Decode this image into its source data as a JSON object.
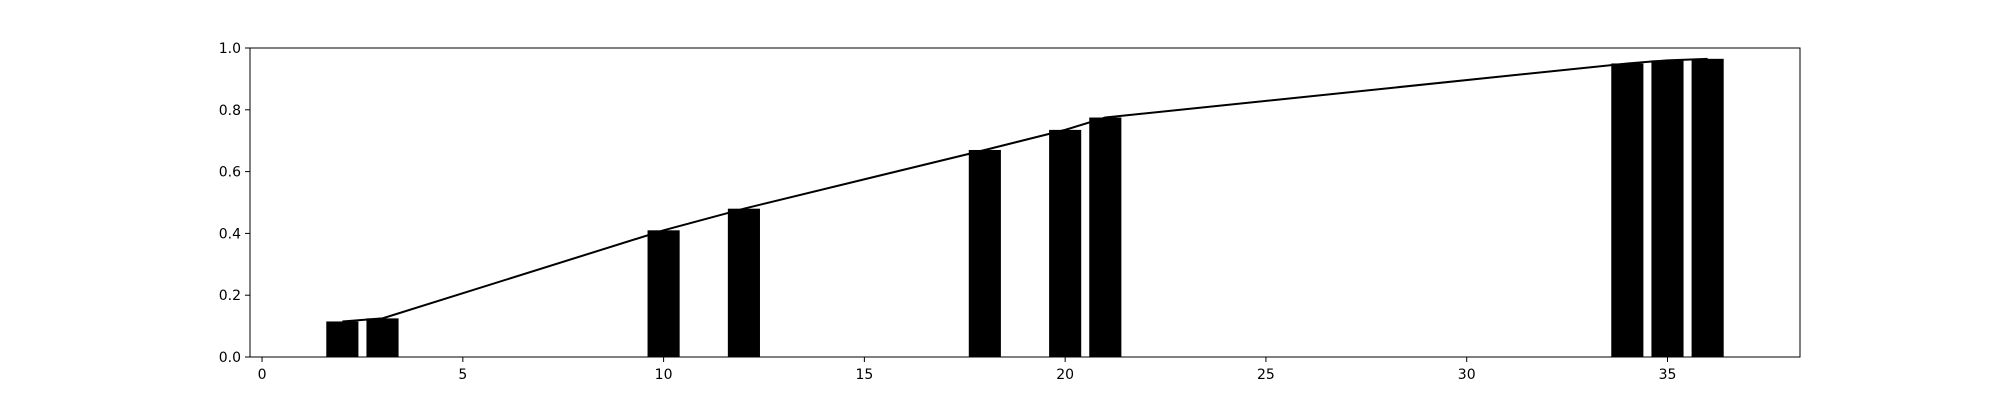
{
  "chart_data": {
    "type": "bar",
    "title": "",
    "xlabel": "",
    "ylabel": "",
    "xlim": [
      -0.3,
      38.3
    ],
    "ylim": [
      0,
      1.0
    ],
    "grid": false,
    "x_ticks": [
      0,
      5,
      10,
      15,
      20,
      25,
      30,
      35
    ],
    "x_tick_labels": [
      "0",
      "5",
      "10",
      "15",
      "20",
      "25",
      "30",
      "35"
    ],
    "y_ticks": [
      0,
      0.2,
      0.4,
      0.6,
      0.8,
      1.0
    ],
    "y_tick_labels": [
      "0.0",
      "0.2",
      "0.4",
      "0.6",
      "0.8",
      "1.0"
    ],
    "bar_width": 0.8,
    "bar_color": "#000000",
    "line_color": "#000000",
    "bars": [
      {
        "x": 2,
        "value": 0.115
      },
      {
        "x": 3,
        "value": 0.125
      },
      {
        "x": 10,
        "value": 0.41
      },
      {
        "x": 12,
        "value": 0.48
      },
      {
        "x": 18,
        "value": 0.67
      },
      {
        "x": 20,
        "value": 0.735
      },
      {
        "x": 21,
        "value": 0.775
      },
      {
        "x": 34,
        "value": 0.95
      },
      {
        "x": 35,
        "value": 0.96
      },
      {
        "x": 36,
        "value": 0.965
      }
    ],
    "line": {
      "x": [
        2,
        3,
        10,
        12,
        18,
        20,
        21,
        34,
        35,
        36
      ],
      "values": [
        0.115,
        0.125,
        0.41,
        0.48,
        0.67,
        0.735,
        0.775,
        0.95,
        0.96,
        0.965
      ]
    }
  }
}
